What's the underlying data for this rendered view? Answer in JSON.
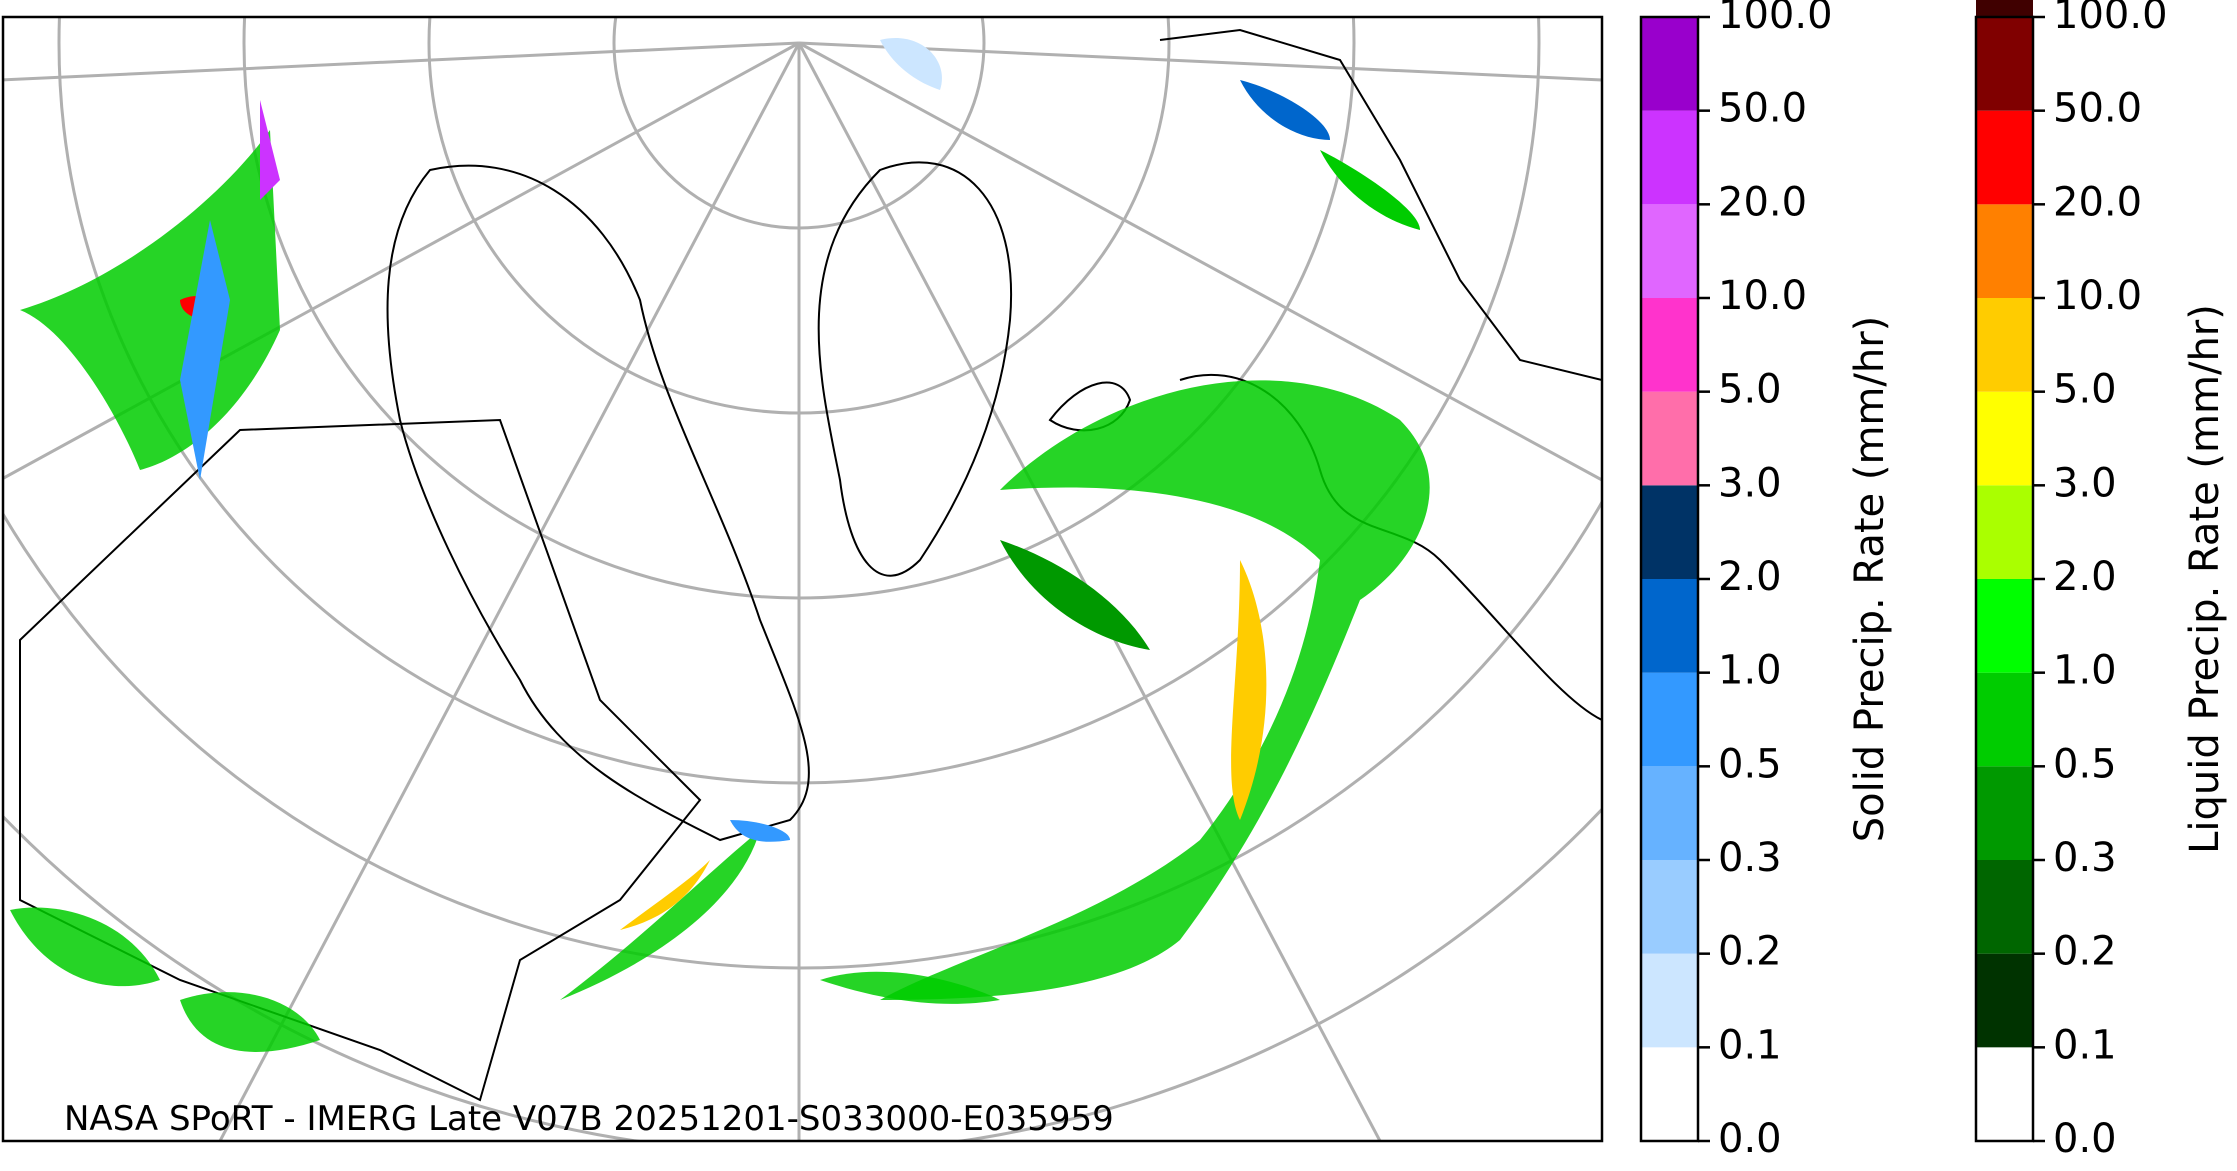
{
  "caption": "NASA SPoRT - IMERG Late V07B 20251201-S033000-E035959",
  "colorbars": [
    {
      "label": "Solid Precip. Rate (mm/hr)",
      "ticks": [
        {
          "value": 0,
          "label": "0.0"
        },
        {
          "value": 0.1,
          "label": "0.1"
        },
        {
          "value": 0.2,
          "label": "0.2"
        },
        {
          "value": 0.3,
          "label": "0.3"
        },
        {
          "value": 0.5,
          "label": "0.5"
        },
        {
          "value": 1,
          "label": "1.0"
        },
        {
          "value": 2,
          "label": "2.0"
        },
        {
          "value": 3,
          "label": "3.0"
        },
        {
          "value": 5,
          "label": "5.0"
        },
        {
          "value": 10,
          "label": "10.0"
        },
        {
          "value": 20,
          "label": "20.0"
        },
        {
          "value": 50,
          "label": "50.0"
        },
        {
          "value": 100,
          "label": "100.0"
        }
      ],
      "colors": [
        "#ffffff",
        "#cce6ff",
        "#99ccff",
        "#66b2ff",
        "#3399ff",
        "#0066cc",
        "#003366",
        "#ff6eaa",
        "#ff33cc",
        "#e066ff",
        "#cc33ff",
        "#9900cc"
      ]
    },
    {
      "label": "Liquid Precip. Rate (mm/hr)",
      "ticks": [
        {
          "value": 0,
          "label": "0.0"
        },
        {
          "value": 0.1,
          "label": "0.1"
        },
        {
          "value": 0.2,
          "label": "0.2"
        },
        {
          "value": 0.3,
          "label": "0.3"
        },
        {
          "value": 0.5,
          "label": "0.5"
        },
        {
          "value": 1,
          "label": "1.0"
        },
        {
          "value": 2,
          "label": "2.0"
        },
        {
          "value": 3,
          "label": "3.0"
        },
        {
          "value": 5,
          "label": "5.0"
        },
        {
          "value": 10,
          "label": "10.0"
        },
        {
          "value": 20,
          "label": "20.0"
        },
        {
          "value": 50,
          "label": "50.0"
        },
        {
          "value": 100,
          "label": "100.0"
        }
      ],
      "colors": [
        "#ffffff",
        "#003300",
        "#006600",
        "#009900",
        "#00cc00",
        "#00ff00",
        "#aaff00",
        "#ffff00",
        "#ffcc00",
        "#ff8000",
        "#ff0000",
        "#800000",
        "#400000"
      ]
    }
  ]
}
